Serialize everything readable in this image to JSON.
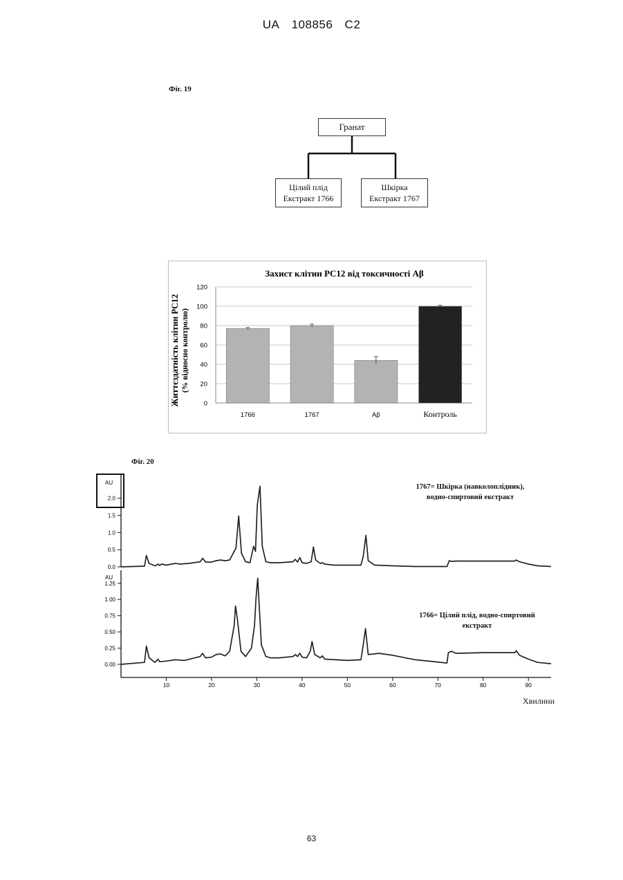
{
  "header": {
    "country": "UA",
    "number": "108856",
    "kind": "C2"
  },
  "figure19": {
    "label": "Фіг. 19",
    "root": "Гранат",
    "left_box": {
      "line1": "Цілий плід",
      "line2": "Екстракт 1766"
    },
    "right_box": {
      "line1": "Шкірка",
      "line2": "Екстракт 1767"
    }
  },
  "figure20": {
    "label": "Фіг. 20",
    "legend_1767": {
      "line1": "1767= Шкірка (навколоплідник),",
      "line2": "водно-спиртовий екстракт"
    },
    "legend_1766": {
      "line1": "1766= Цілий плід, водно-спиртовий",
      "line2": "екстракт"
    },
    "x_axis_label": "Хвилини",
    "y_unit_label": "AU"
  },
  "page_number": "63",
  "chart_data": [
    {
      "type": "bar",
      "title": "Захист клітин PC12 від токсичності Aβ",
      "ylabel_line1": "Життєздатність клітин PC12",
      "ylabel_line2": "(% відносно контролю)",
      "categories": [
        "1766",
        "1767",
        "Aβ",
        "Контроль"
      ],
      "values": [
        77,
        80,
        44,
        100
      ],
      "errors": [
        1,
        1.5,
        4,
        1
      ],
      "ylim": [
        0,
        120
      ],
      "yticks": [
        0,
        20,
        40,
        60,
        80,
        100,
        120
      ],
      "colors": [
        "#b3b3b3",
        "#b3b3b3",
        "#b3b3b3",
        "#222222"
      ],
      "grid": true
    },
    {
      "type": "line",
      "name": "1767",
      "xlim": [
        0,
        95
      ],
      "ylim": [
        0,
        2.7
      ],
      "yticks": [
        "0.0",
        "0.5",
        "1.0",
        "1.5",
        "2.0"
      ],
      "y_unit": "AU",
      "x": [
        0,
        5.2,
        5.6,
        6.2,
        7.5,
        8.2,
        8.5,
        9,
        10,
        12,
        13,
        15,
        17.5,
        18,
        18.7,
        20,
        21,
        22,
        23,
        24,
        25.4,
        26,
        26.6,
        27.5,
        28.5,
        29.3,
        29.7,
        30.1,
        30.7,
        31.2,
        32,
        33,
        35,
        38,
        38.5,
        39,
        39.5,
        40,
        41,
        42,
        42.5,
        43,
        44,
        44.5,
        45,
        47,
        50,
        53,
        53.5,
        54.1,
        54.6,
        56,
        60,
        65,
        72,
        72.5,
        73,
        74,
        80,
        87,
        87.3,
        88,
        90,
        92,
        95
      ],
      "y": [
        0.0,
        0.02,
        0.33,
        0.1,
        0.03,
        0.08,
        0.04,
        0.08,
        0.05,
        0.1,
        0.08,
        0.1,
        0.15,
        0.25,
        0.14,
        0.14,
        0.18,
        0.2,
        0.18,
        0.2,
        0.55,
        1.48,
        0.4,
        0.15,
        0.12,
        0.6,
        0.45,
        1.8,
        2.35,
        0.6,
        0.15,
        0.12,
        0.12,
        0.15,
        0.22,
        0.14,
        0.27,
        0.12,
        0.1,
        0.15,
        0.58,
        0.2,
        0.1,
        0.12,
        0.08,
        0.05,
        0.05,
        0.05,
        0.3,
        0.92,
        0.18,
        0.05,
        0.03,
        0.01,
        0.01,
        0.18,
        0.16,
        0.17,
        0.17,
        0.17,
        0.2,
        0.15,
        0.08,
        0.03,
        0.01
      ]
    },
    {
      "type": "line",
      "name": "1766",
      "xlim": [
        0,
        95
      ],
      "ylim": [
        0,
        1.45
      ],
      "yticks": [
        "0.00",
        "0.25",
        "0.50",
        "0.75",
        "1.00",
        "1.25"
      ],
      "y_unit": "AU",
      "x": [
        0,
        5.2,
        5.6,
        6.2,
        7.5,
        8.2,
        8.5,
        10,
        12,
        14,
        17.5,
        18,
        18.7,
        20,
        21,
        22,
        23,
        24,
        25,
        25.3,
        25.7,
        26.5,
        27.5,
        28.8,
        29.5,
        29.8,
        30.2,
        31,
        32,
        33,
        35,
        38,
        38.5,
        39,
        39.5,
        40,
        41,
        41.8,
        42.2,
        42.8,
        44,
        44.5,
        45,
        50,
        53,
        53.5,
        54,
        54.6,
        57,
        60,
        65,
        72,
        72.3,
        73,
        74,
        80,
        87,
        87.3,
        88,
        90,
        92,
        95
      ],
      "y": [
        0.0,
        0.03,
        0.28,
        0.1,
        0.03,
        0.08,
        0.04,
        0.05,
        0.07,
        0.06,
        0.12,
        0.17,
        0.1,
        0.11,
        0.15,
        0.16,
        0.13,
        0.2,
        0.6,
        0.9,
        0.7,
        0.2,
        0.12,
        0.25,
        0.6,
        1.0,
        1.33,
        0.3,
        0.12,
        0.1,
        0.1,
        0.12,
        0.15,
        0.12,
        0.17,
        0.11,
        0.1,
        0.2,
        0.35,
        0.15,
        0.1,
        0.13,
        0.08,
        0.06,
        0.07,
        0.3,
        0.55,
        0.15,
        0.17,
        0.14,
        0.07,
        0.02,
        0.18,
        0.2,
        0.17,
        0.18,
        0.18,
        0.21,
        0.14,
        0.08,
        0.03,
        0.01
      ]
    }
  ]
}
